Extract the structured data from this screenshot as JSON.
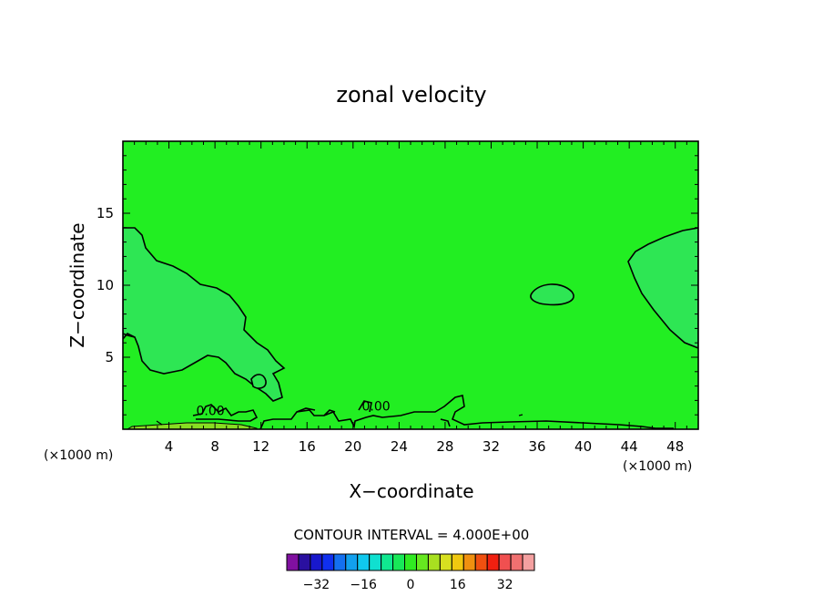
{
  "chart_data": {
    "type": "contour",
    "title": "zonal velocity",
    "xlabel": "X−coordinate",
    "ylabel": "Z−coordinate",
    "x_unit_left": "(×1000 m)",
    "x_unit_right": "(×1000 m)",
    "xlim": [
      0,
      50
    ],
    "ylim": [
      0,
      20
    ],
    "x_ticks": [
      4,
      8,
      12,
      16,
      20,
      24,
      28,
      32,
      36,
      40,
      44,
      48
    ],
    "y_ticks": [
      5,
      10,
      15
    ],
    "contour_interval_text": "CONTOUR INTERVAL = 4.000E+00",
    "contour_labels": [
      {
        "text": "0.00",
        "x": 7.6,
        "y": 1.3
      },
      {
        "text": "0.00",
        "x": 22.0,
        "y": 1.6
      }
    ],
    "regions": [
      {
        "name": "background",
        "range": [
          0,
          4
        ],
        "color": "#22ee22"
      },
      {
        "name": "negative-pocket",
        "range": [
          -4,
          0
        ],
        "color": "#2ee654"
      },
      {
        "name": "surface-strong",
        "range": [
          4,
          8
        ],
        "color": "#88dd22"
      }
    ],
    "colorbar": {
      "colors": [
        "#8010a0",
        "#2a10a0",
        "#1818cc",
        "#1030ee",
        "#1470f0",
        "#12a0ee",
        "#10c8ee",
        "#10e0d0",
        "#10e890",
        "#18e858",
        "#30ea22",
        "#66e820",
        "#a8e020",
        "#d8e020",
        "#f0c810",
        "#f09010",
        "#f05010",
        "#f02010",
        "#f05050",
        "#f07070",
        "#f4a0a0"
      ],
      "tick_labels": [
        "−32",
        "−16",
        "0",
        "16",
        "32"
      ],
      "tick_values": [
        -32,
        -16,
        0,
        16,
        32
      ]
    }
  }
}
